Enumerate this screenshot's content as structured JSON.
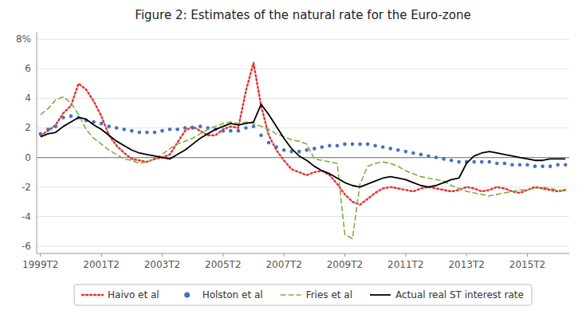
{
  "chart_data": {
    "type": "line",
    "title": "Figure 2: Estimates of the natural rate for the Euro-zone",
    "categories": [
      "1999T2",
      null,
      null,
      null,
      null,
      null,
      null,
      null,
      "2001T2",
      null,
      null,
      null,
      null,
      null,
      null,
      null,
      "2003T2",
      null,
      null,
      null,
      null,
      null,
      null,
      null,
      "2005T2",
      null,
      null,
      null,
      null,
      null,
      null,
      null,
      "2007T2",
      null,
      null,
      null,
      null,
      null,
      null,
      null,
      "2009T2",
      null,
      null,
      null,
      null,
      null,
      null,
      null,
      "2011T2",
      null,
      null,
      null,
      null,
      null,
      null,
      null,
      "2013T2",
      null,
      null,
      null,
      null,
      null,
      null,
      null,
      "2015T2",
      null,
      null,
      null,
      null,
      null
    ],
    "ylim": [
      -6.5,
      8.5
    ],
    "yticks": [
      -6,
      -4,
      -2,
      0,
      2,
      4,
      6,
      {
        "value": 8,
        "label": "8%"
      }
    ],
    "grid": true,
    "legend": "bottom",
    "series": [
      {
        "name": "Haivo et al",
        "color": "#e83030",
        "line_style": "dotted",
        "values": [
          1.5,
          1.8,
          2.2,
          3.0,
          3.5,
          5.0,
          4.6,
          3.8,
          2.8,
          1.5,
          0.8,
          0.3,
          -0.1,
          -0.2,
          -0.3,
          -0.1,
          0.0,
          0.2,
          1.0,
          1.8,
          2.1,
          1.8,
          1.5,
          1.5,
          1.9,
          2.1,
          2.0,
          4.5,
          6.4,
          3.5,
          1.5,
          0.5,
          -0.2,
          -0.8,
          -1.0,
          -1.2,
          -1.0,
          -0.9,
          -1.2,
          -1.8,
          -2.5,
          -3.0,
          -3.2,
          -2.8,
          -2.4,
          -2.1,
          -2.0,
          -2.1,
          -2.2,
          -2.3,
          -2.1,
          -2.0,
          -2.1,
          -2.2,
          -2.3,
          -2.2,
          -2.0,
          -2.1,
          -2.3,
          -2.2,
          -2.0,
          -2.1,
          -2.3,
          -2.4,
          -2.2,
          -2.0,
          -2.1,
          -2.2,
          -2.3,
          -2.2
        ]
      },
      {
        "name": "Holston et al",
        "color": "#4472c4",
        "line_style": "none",
        "marker": "circle",
        "values": [
          1.6,
          1.9,
          2.1,
          2.7,
          2.8,
          2.7,
          2.5,
          2.4,
          2.3,
          2.1,
          2.0,
          1.9,
          1.8,
          1.7,
          1.7,
          1.7,
          1.8,
          1.9,
          1.9,
          2.0,
          2.0,
          2.1,
          2.0,
          1.9,
          1.8,
          1.8,
          1.8,
          2.0,
          2.1,
          1.5,
          1.0,
          0.7,
          0.5,
          0.4,
          0.4,
          0.5,
          0.6,
          0.7,
          0.8,
          0.8,
          0.9,
          0.9,
          0.9,
          0.9,
          0.8,
          0.7,
          0.6,
          0.5,
          0.4,
          0.3,
          0.2,
          0.1,
          0.0,
          -0.1,
          -0.2,
          -0.3,
          -0.3,
          -0.3,
          -0.3,
          -0.3,
          -0.4,
          -0.4,
          -0.5,
          -0.5,
          -0.5,
          -0.6,
          -0.6,
          -0.6,
          -0.5,
          -0.5
        ]
      },
      {
        "name": "Fries et al",
        "color": "#7fb040",
        "line_style": "dashed",
        "values": [
          2.9,
          3.3,
          3.9,
          4.1,
          3.7,
          2.9,
          1.9,
          1.3,
          0.9,
          0.5,
          0.2,
          -0.1,
          -0.2,
          -0.4,
          -0.3,
          -0.1,
          0.2,
          0.6,
          0.9,
          1.1,
          1.3,
          1.6,
          1.9,
          2.1,
          2.3,
          2.4,
          2.3,
          2.4,
          2.3,
          2.1,
          1.9,
          1.6,
          1.4,
          1.2,
          1.1,
          0.9,
          -0.1,
          -0.2,
          -0.3,
          -0.4,
          -5.2,
          -5.5,
          -1.8,
          -0.6,
          -0.4,
          -0.3,
          -0.4,
          -0.6,
          -0.9,
          -1.1,
          -1.3,
          -1.4,
          -1.5,
          -1.6,
          -1.9,
          -2.1,
          -2.3,
          -2.4,
          -2.5,
          -2.6,
          -2.5,
          -2.4,
          -2.3,
          -2.2,
          -2.2,
          -2.1,
          -2.0,
          -2.1,
          -2.2,
          -2.3
        ]
      },
      {
        "name": "Actual real ST interest rate",
        "color": "#000000",
        "line_style": "solid",
        "values": [
          1.4,
          1.6,
          1.7,
          2.1,
          2.4,
          2.7,
          2.6,
          2.2,
          1.9,
          1.5,
          1.1,
          0.8,
          0.5,
          0.3,
          0.2,
          0.1,
          0.0,
          -0.1,
          0.2,
          0.5,
          0.9,
          1.3,
          1.6,
          1.9,
          2.1,
          2.3,
          2.2,
          2.3,
          2.4,
          3.6,
          2.9,
          2.1,
          1.3,
          0.6,
          0.1,
          -0.2,
          -0.6,
          -0.9,
          -1.1,
          -1.4,
          -1.7,
          -1.9,
          -2.0,
          -1.8,
          -1.6,
          -1.4,
          -1.3,
          -1.4,
          -1.5,
          -1.7,
          -1.9,
          -2.0,
          -1.9,
          -1.7,
          -1.5,
          -1.4,
          -0.4,
          0.1,
          0.3,
          0.4,
          0.3,
          0.2,
          0.1,
          0.0,
          -0.1,
          -0.2,
          -0.2,
          -0.1,
          -0.1,
          -0.1
        ]
      }
    ]
  }
}
